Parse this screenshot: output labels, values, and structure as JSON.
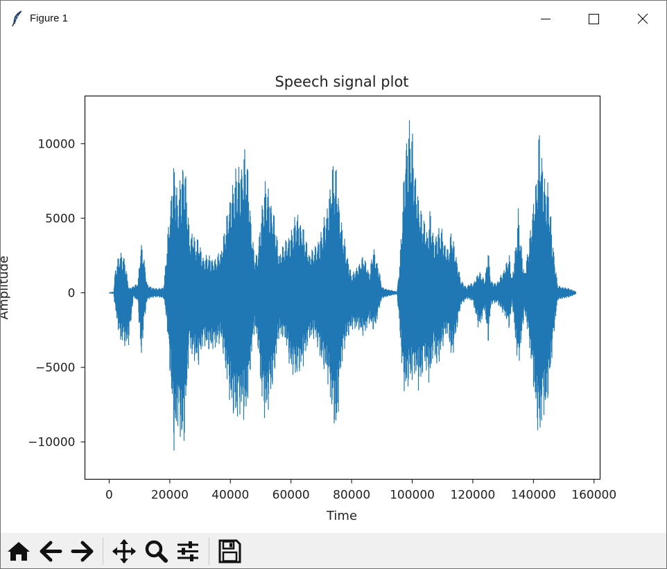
{
  "window": {
    "title": "Figure 1",
    "app_icon": "feather-icon",
    "controls": [
      "minimize-icon",
      "maximize-icon",
      "close-icon"
    ]
  },
  "toolbar": {
    "buttons": [
      "home-icon",
      "back-arrow-icon",
      "forward-arrow-icon",
      "pan-icon",
      "zoom-icon",
      "configure-subplots-icon",
      "save-icon"
    ]
  },
  "chart_data": {
    "type": "line",
    "title": "Speech signal plot",
    "xlabel": "Time",
    "ylabel": "Amplitude",
    "xlim": [
      -8000,
      162000
    ],
    "ylim": [
      -12500,
      13200
    ],
    "xticks": [
      0,
      20000,
      40000,
      60000,
      80000,
      100000,
      120000,
      140000,
      160000
    ],
    "xtick_labels": [
      "0",
      "20000",
      "40000",
      "60000",
      "80000",
      "100000",
      "120000",
      "140000",
      "160000"
    ],
    "yticks": [
      -10000,
      -5000,
      0,
      5000,
      10000
    ],
    "ytick_labels": [
      "−10000",
      "−5000",
      "0",
      "5000",
      "10000"
    ],
    "grid": false,
    "line_color": "#1f77b4",
    "series": [
      {
        "note_points": "approximate upper/lower envelope of the waveform",
        "x": [
          0,
          1500,
          2000,
          3500,
          5000,
          5500,
          6500,
          8000,
          9500,
          10500,
          11500,
          12500,
          14000,
          16000,
          18000,
          19000,
          20500,
          21500,
          22500,
          23500,
          24500,
          25500,
          26500,
          27500,
          28500,
          29500,
          31000,
          33000,
          35000,
          37000,
          39000,
          40500,
          42000,
          43500,
          45000,
          46000,
          47000,
          48000,
          49000,
          50000,
          51000,
          52000,
          53000,
          54000,
          55000,
          56000,
          58000,
          60000,
          62000,
          64000,
          66000,
          68000,
          70000,
          72000,
          73500,
          75000,
          76500,
          78000,
          80000,
          82000,
          84000,
          86000,
          87000,
          88000,
          89000,
          90000,
          92000,
          94000,
          95000,
          96000,
          97000,
          98000,
          99000,
          100000,
          101000,
          102000,
          103000,
          104000,
          105000,
          106000,
          107000,
          108000,
          109000,
          110000,
          111000,
          112000,
          113000,
          114000,
          116000,
          118000,
          119000,
          120000,
          122000,
          124000,
          125000,
          126000,
          128000,
          130000,
          131000,
          132000,
          133000,
          134000,
          135000,
          136000,
          137000,
          138000,
          139000,
          140000,
          141000,
          142000,
          143000,
          144000,
          145000,
          146000,
          147000,
          148000,
          150000,
          152000,
          154000
        ],
        "upper": [
          0,
          100,
          1700,
          2800,
          2600,
          1800,
          300,
          500,
          700,
          3600,
          2500,
          600,
          400,
          300,
          400,
          3200,
          7000,
          9500,
          6500,
          8000,
          9600,
          7500,
          4000,
          4500,
          3500,
          3800,
          2500,
          2600,
          2300,
          3100,
          5500,
          7500,
          8500,
          9000,
          10000,
          8000,
          4500,
          2500,
          2700,
          5300,
          7200,
          7800,
          6800,
          5900,
          4500,
          2800,
          3500,
          4300,
          5600,
          4500,
          2800,
          3200,
          4300,
          6000,
          8700,
          8700,
          5000,
          3300,
          1200,
          1900,
          2600,
          1300,
          3200,
          2600,
          1700,
          400,
          250,
          150,
          100,
          2500,
          7000,
          11000,
          12000,
          11000,
          8500,
          6800,
          5500,
          5100,
          4300,
          5800,
          3800,
          4300,
          4500,
          4300,
          3300,
          3100,
          4400,
          3200,
          900,
          400,
          700,
          600,
          1500,
          900,
          3100,
          800,
          700,
          1500,
          2100,
          2600,
          1000,
          3100,
          5700,
          3200,
          1400,
          2700,
          4300,
          6600,
          8000,
          11300,
          9200,
          7700,
          7300,
          4600,
          2300,
          500,
          400,
          300,
          100
        ],
        "lower": [
          0,
          -100,
          -1200,
          -3300,
          -3600,
          -3800,
          -3500,
          -300,
          -600,
          -4800,
          -2100,
          -500,
          -350,
          -300,
          -400,
          -2000,
          -7000,
          -11300,
          -9000,
          -10000,
          -11200,
          -7500,
          -3500,
          -4600,
          -4700,
          -5000,
          -3500,
          -4000,
          -3800,
          -3300,
          -6300,
          -8300,
          -8800,
          -8200,
          -8900,
          -7000,
          -4300,
          -2500,
          -3500,
          -6500,
          -8500,
          -8600,
          -7300,
          -6500,
          -4800,
          -3000,
          -3200,
          -5500,
          -5800,
          -5000,
          -3200,
          -3100,
          -4800,
          -5900,
          -8200,
          -10100,
          -5200,
          -3500,
          -2500,
          -2500,
          -3000,
          -2000,
          -2600,
          -2300,
          -1200,
          -400,
          -250,
          -150,
          -100,
          -3000,
          -6500,
          -7000,
          -6100,
          -6100,
          -5500,
          -6600,
          -6300,
          -4700,
          -6000,
          -6100,
          -4000,
          -5100,
          -4700,
          -3700,
          -3000,
          -2900,
          -4800,
          -3500,
          -900,
          -400,
          -500,
          -600,
          -2600,
          -1100,
          -3700,
          -800,
          -700,
          -1400,
          -1800,
          -2500,
          -600,
          -3200,
          -5300,
          -3500,
          -1300,
          -2500,
          -4300,
          -6400,
          -8900,
          -10300,
          -8200,
          -8500,
          -7000,
          -4700,
          -2400,
          -500,
          -400,
          -300,
          -100
        ]
      }
    ]
  }
}
